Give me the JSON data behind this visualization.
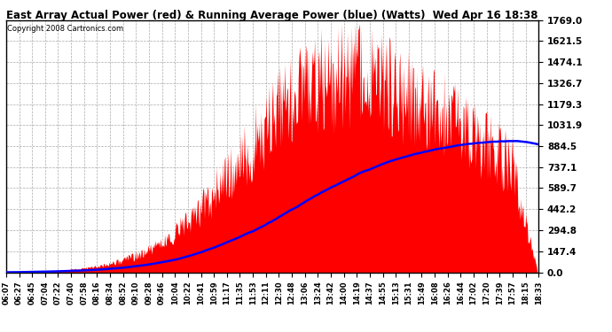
{
  "title": "East Array Actual Power (red) & Running Average Power (blue) (Watts)  Wed Apr 16 18:38",
  "copyright": "Copyright 2008 Cartronics.com",
  "yticks": [
    0.0,
    147.4,
    294.8,
    442.2,
    589.7,
    737.1,
    884.5,
    1031.9,
    1179.3,
    1326.7,
    1474.1,
    1621.5,
    1769.0
  ],
  "ymax": 1769.0,
  "ymin": 0.0,
  "bg_color": "#ffffff",
  "plot_bg": "#ffffff",
  "grid_color": "#aaaaaa",
  "actual_color": "#ff0000",
  "avg_color": "#0000ff",
  "xtick_labels": [
    "06:07",
    "06:27",
    "06:45",
    "07:04",
    "07:22",
    "07:40",
    "07:58",
    "08:16",
    "08:34",
    "08:52",
    "09:10",
    "09:28",
    "09:46",
    "10:04",
    "10:22",
    "10:41",
    "10:59",
    "11:17",
    "11:35",
    "11:53",
    "12:11",
    "12:30",
    "12:48",
    "13:06",
    "13:24",
    "13:42",
    "14:00",
    "14:19",
    "14:37",
    "14:55",
    "15:13",
    "15:31",
    "15:49",
    "16:08",
    "16:26",
    "16:44",
    "17:02",
    "17:20",
    "17:39",
    "17:57",
    "18:15",
    "18:33"
  ]
}
